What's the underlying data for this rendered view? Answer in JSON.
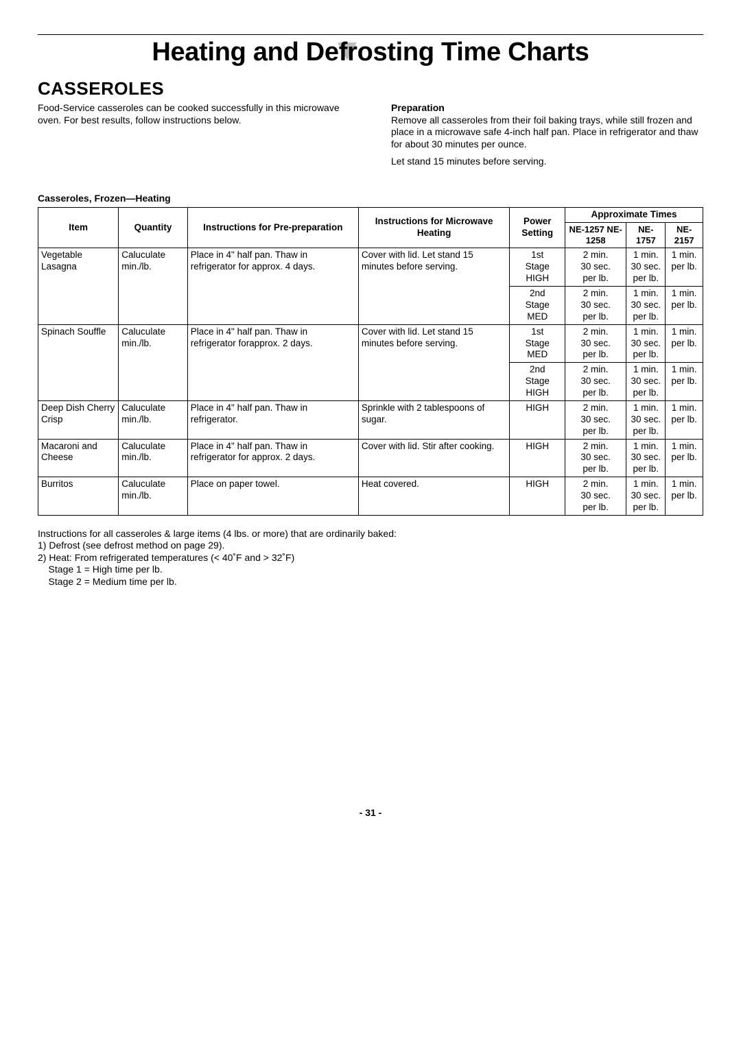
{
  "page": {
    "title_pre": "Heating and De",
    "title_post": "frosting Time Charts",
    "section": "CASSEROLES",
    "page_number": "- 31 -"
  },
  "intro": {
    "left": "Food-Service casseroles can be cooked successfully in this microwave oven. For best results, follow instructions below.",
    "prep_head": "Preparation",
    "prep_body": "Remove all casseroles from their foil baking trays, while still frozen and place in a microwave safe 4-inch half pan. Place in refrigerator and thaw for about 30 minutes per ounce.",
    "prep_tail": "Let stand 15 minutes before serving."
  },
  "table": {
    "caption": "Casseroles, Frozen—Heating",
    "head": {
      "item": "Item",
      "qty": "Quantity",
      "pre": "Instructions for Pre-preparation",
      "micro": "Instructions for Microwave Heating",
      "power": "Power Setting",
      "approx": "Approximate Times",
      "m1": "NE-1257 NE-1258",
      "m2": "NE-1757",
      "m3": "NE-2157"
    },
    "rows": [
      {
        "item": "Vegetable Lasagna",
        "qty": "Caluculate min./lb.",
        "pre": "Place in 4\" half pan. Thaw in refrigerator for approx. 4 days.",
        "micro": "Cover with lid. Let stand 15 minutes before serving.",
        "stages": [
          {
            "power": "1st Stage HIGH",
            "t1": "2 min. 30 sec. per lb.",
            "t2": "1 min. 30 sec. per lb.",
            "t3": "1 min. per lb."
          },
          {
            "power": "2nd Stage MED",
            "t1": "2 min. 30 sec. per lb.",
            "t2": "1 min. 30 sec. per lb.",
            "t3": "1 min. per lb."
          }
        ]
      },
      {
        "item": "Spinach Souffle",
        "qty": "Caluculate min./lb.",
        "pre": "Place in 4\" half pan. Thaw in refrigerator forapprox. 2 days.",
        "micro": "Cover with lid. Let stand 15 minutes before serving.",
        "stages": [
          {
            "power": "1st Stage MED",
            "t1": "2 min. 30 sec. per lb.",
            "t2": "1 min. 30 sec. per lb.",
            "t3": "1 min. per lb."
          },
          {
            "power": "2nd Stage HIGH",
            "t1": "2 min. 30 sec. per lb.",
            "t2": "1 min. 30 sec. per lb.",
            "t3": "1 min. per lb."
          }
        ]
      },
      {
        "item": "Deep Dish Cherry Crisp",
        "qty": "Caluculate min./lb.",
        "pre": "Place in 4\" half pan. Thaw in refrigerator.",
        "micro": "Sprinkle with 2 tablespoons of sugar.",
        "stages": [
          {
            "power": "HIGH",
            "t1": "2 min. 30 sec. per lb.",
            "t2": "1 min. 30 sec. per lb.",
            "t3": "1 min. per lb."
          }
        ]
      },
      {
        "item": "Macaroni and Cheese",
        "qty": "Caluculate min./lb.",
        "pre": "Place in 4\" half pan. Thaw in refrigerator for approx. 2 days.",
        "micro": "Cover with lid. Stir after cooking.",
        "stages": [
          {
            "power": "HIGH",
            "t1": "2 min. 30 sec. per lb.",
            "t2": "1 min. 30 sec. per lb.",
            "t3": "1 min. per lb."
          }
        ]
      },
      {
        "item": "Burritos",
        "qty": "Caluculate min./lb.",
        "pre": "Place on paper towel.",
        "micro": "Heat covered.",
        "stages": [
          {
            "power": "HIGH",
            "t1": "2 min. 30 sec. per lb.",
            "t2": "1 min. 30 sec. per lb.",
            "t3": "1 min. per lb."
          }
        ]
      }
    ]
  },
  "notes": {
    "l1": "Instructions for all casseroles & large items (4 lbs. or more) that are ordinarily baked:",
    "l2": "1) Defrost (see defrost method on page 29).",
    "l3": "2) Heat: From refrigerated temperatures (< 40˚F and > 32˚F)",
    "l4": "    Stage 1 = High time per lb.",
    "l5": "    Stage 2 = Medium time per lb."
  },
  "style": {
    "triangle_fill": "#bdbdbd",
    "text_color": "#000000",
    "background": "#ffffff"
  }
}
